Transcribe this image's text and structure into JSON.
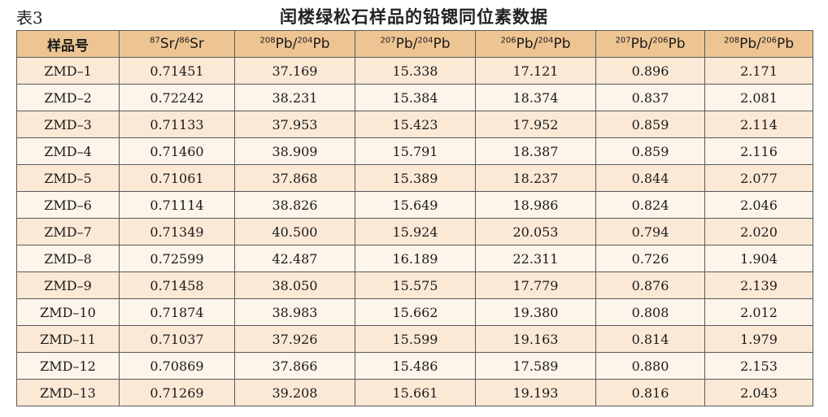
{
  "caption": {
    "label": "表3",
    "title": "闰楼绿松石样品的铅锶同位素数据"
  },
  "header": [
    {
      "sup": "",
      "text": "样品号",
      "sup2": "",
      "text2": ""
    },
    {
      "sup": "87",
      "text": "Sr/",
      "sup2": "86",
      "text2": "Sr"
    },
    {
      "sup": "208",
      "text": "Pb/",
      "sup2": "204",
      "text2": "Pb"
    },
    {
      "sup": "207",
      "text": "Pb/",
      "sup2": "204",
      "text2": "Pb"
    },
    {
      "sup": "206",
      "text": "Pb/",
      "sup2": "204",
      "text2": "Pb"
    },
    {
      "sup": "207",
      "text": "Pb/",
      "sup2": "206",
      "text2": "Pb"
    },
    {
      "sup": "208",
      "text": "Pb/",
      "sup2": "206",
      "text2": "Pb"
    }
  ],
  "rows": [
    [
      "ZMD–1",
      "0.71451",
      "37.169",
      "15.338",
      "17.121",
      "0.896",
      "2.171"
    ],
    [
      "ZMD–2",
      "0.72242",
      "38.231",
      "15.384",
      "18.374",
      "0.837",
      "2.081"
    ],
    [
      "ZMD–3",
      "0.71133",
      "37.953",
      "15.423",
      "17.952",
      "0.859",
      "2.114"
    ],
    [
      "ZMD–4",
      "0.71460",
      "38.909",
      "15.791",
      "18.387",
      "0.859",
      "2.116"
    ],
    [
      "ZMD–5",
      "0.71061",
      "37.868",
      "15.389",
      "18.237",
      "0.844",
      "2.077"
    ],
    [
      "ZMD–6",
      "0.71114",
      "38.826",
      "15.649",
      "18.986",
      "0.824",
      "2.046"
    ],
    [
      "ZMD–7",
      "0.71349",
      "40.500",
      "15.924",
      "20.053",
      "0.794",
      "2.020"
    ],
    [
      "ZMD–8",
      "0.72599",
      "42.487",
      "16.189",
      "22.311",
      "0.726",
      "1.904"
    ],
    [
      "ZMD–9",
      "0.71458",
      "38.050",
      "15.575",
      "17.779",
      "0.876",
      "2.139"
    ],
    [
      "ZMD–10",
      "0.71874",
      "38.983",
      "15.662",
      "19.380",
      "0.808",
      "2.012"
    ],
    [
      "ZMD–11",
      "0.71037",
      "37.926",
      "15.599",
      "19.163",
      "0.814",
      "1.979"
    ],
    [
      "ZMD–12",
      "0.70869",
      "37.866",
      "15.486",
      "17.589",
      "0.880",
      "2.153"
    ],
    [
      "ZMD–13",
      "0.71269",
      "39.208",
      "15.661",
      "19.193",
      "0.816",
      "2.043"
    ]
  ],
  "colors": {
    "header_bg": "#eec592",
    "row_odd_bg": "#fbe9d6",
    "row_even_bg": "#fdf4ea",
    "border": "#5a5a5a"
  }
}
